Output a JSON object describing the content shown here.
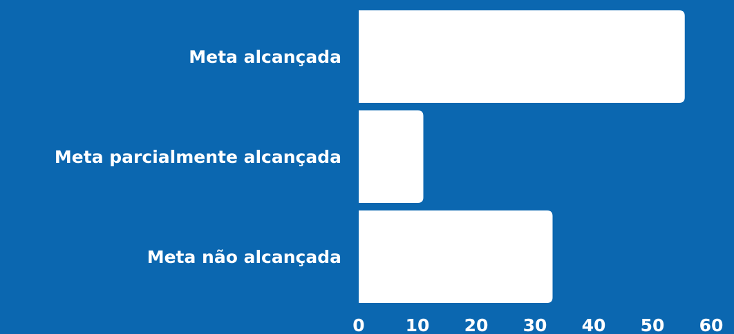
{
  "colors": {
    "background": "#0B67B0",
    "bar": "#FFFFFF",
    "text": "#FFFFFF"
  },
  "chart_data": {
    "type": "bar",
    "orientation": "horizontal",
    "categories": [
      "Meta alcançada",
      "Meta parcialmente alcançada",
      "Meta não alcançada"
    ],
    "values": [
      55.5,
      11,
      33
    ],
    "xlim": [
      0,
      60
    ],
    "x_ticks": [
      "0",
      "10",
      "20",
      "30",
      "40",
      "50",
      "60"
    ],
    "grid": false,
    "legend": "none"
  }
}
